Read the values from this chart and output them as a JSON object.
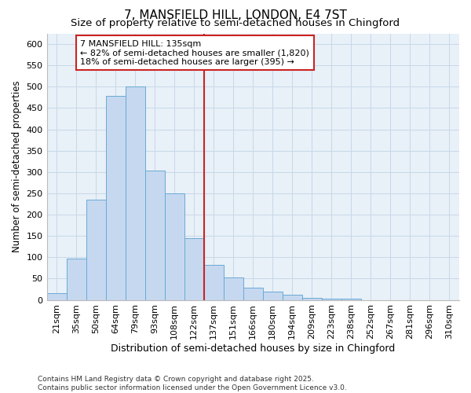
{
  "title": "7, MANSFIELD HILL, LONDON, E4 7ST",
  "subtitle": "Size of property relative to semi-detached houses in Chingford",
  "xlabel": "Distribution of semi-detached houses by size in Chingford",
  "ylabel": "Number of semi-detached properties",
  "categories": [
    "21sqm",
    "35sqm",
    "50sqm",
    "64sqm",
    "79sqm",
    "93sqm",
    "108sqm",
    "122sqm",
    "137sqm",
    "151sqm",
    "166sqm",
    "180sqm",
    "194sqm",
    "209sqm",
    "223sqm",
    "238sqm",
    "252sqm",
    "267sqm",
    "281sqm",
    "296sqm",
    "310sqm"
  ],
  "values": [
    15,
    97,
    235,
    478,
    500,
    303,
    250,
    145,
    83,
    52,
    28,
    20,
    12,
    5,
    3,
    2,
    0,
    0,
    0,
    0,
    0
  ],
  "bar_color": "#c5d8f0",
  "bar_edge_color": "#6aaad4",
  "vline_x_index": 8,
  "vline_color": "#cc2222",
  "vline_label": "7 MANSFIELD HILL: 135sqm",
  "annotation_line1": "← 82% of semi-detached houses are smaller (1,820)",
  "annotation_line2": "18% of semi-detached houses are larger (395) →",
  "box_edge_color": "#cc2222",
  "ylim": [
    0,
    625
  ],
  "yticks": [
    0,
    50,
    100,
    150,
    200,
    250,
    300,
    350,
    400,
    450,
    500,
    550,
    600
  ],
  "grid_color": "#c8d8e8",
  "background_color": "#e8f0f8",
  "footnote1": "Contains HM Land Registry data © Crown copyright and database right 2025.",
  "footnote2": "Contains public sector information licensed under the Open Government Licence v3.0.",
  "title_fontsize": 11,
  "subtitle_fontsize": 9.5,
  "xlabel_fontsize": 9,
  "ylabel_fontsize": 8.5,
  "tick_fontsize": 8,
  "annotation_fontsize": 8,
  "footnote_fontsize": 6.5
}
